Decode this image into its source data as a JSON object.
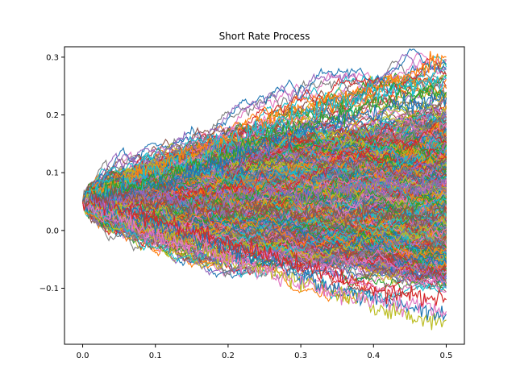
{
  "chart_data": {
    "type": "line",
    "title": "Short Rate Process",
    "xlabel": "",
    "ylabel": "",
    "xlim": [
      -0.025,
      0.525
    ],
    "ylim": [
      -0.197,
      0.318
    ],
    "x_ticks": [
      0.0,
      0.1,
      0.2,
      0.3,
      0.4,
      0.5
    ],
    "x_tick_labels": [
      "0.0",
      "0.1",
      "0.2",
      "0.3",
      "0.4",
      "0.5"
    ],
    "y_ticks": [
      -0.1,
      0.0,
      0.1,
      0.2,
      0.3
    ],
    "y_tick_labels": [
      "−0.1",
      "0.0",
      "0.1",
      "0.2",
      "0.3"
    ],
    "grid": false,
    "legend": "none",
    "x_start": 0.0,
    "x_end": 0.5,
    "initial_value": 0.05,
    "num_paths_shown": 1000,
    "palette": [
      "#1f77b4",
      "#ff7f0e",
      "#2ca02c",
      "#d62728",
      "#9467bd",
      "#8c564b",
      "#e377c2",
      "#7f7f7f",
      "#bcbd22",
      "#17becf"
    ],
    "series": [
      {
        "values": [
          0.05,
          0.08,
          0.11,
          0.14,
          0.16,
          0.19,
          0.21,
          0.23,
          0.25,
          0.27,
          0.3
        ],
        "color": "#ff7f0e"
      },
      {
        "values": [
          0.05,
          0.07,
          0.1,
          0.12,
          0.15,
          0.18,
          0.2,
          0.22,
          0.24,
          0.25,
          0.263
        ],
        "color": "#17becf"
      },
      {
        "values": [
          0.05,
          0.07,
          0.09,
          0.11,
          0.13,
          0.16,
          0.18,
          0.2,
          0.22,
          0.23,
          0.24
        ],
        "color": "#2ca02c"
      },
      {
        "values": [
          0.05,
          0.06,
          0.08,
          0.1,
          0.12,
          0.15,
          0.17,
          0.19,
          0.2,
          0.22,
          0.23
        ],
        "color": "#1f77b4"
      },
      {
        "values": [
          0.05,
          0.03,
          0.0,
          -0.02,
          -0.05,
          -0.07,
          -0.09,
          -0.11,
          -0.13,
          -0.15,
          -0.155
        ],
        "color": "#bcbd22"
      },
      {
        "values": [
          0.05,
          0.03,
          0.01,
          -0.01,
          -0.03,
          -0.05,
          -0.08,
          -0.1,
          -0.12,
          -0.13,
          -0.145
        ],
        "color": "#1f77b4"
      },
      {
        "values": [
          0.05,
          0.02,
          -0.01,
          -0.03,
          -0.05,
          -0.07,
          -0.09,
          -0.11,
          -0.12,
          -0.13,
          -0.14
        ],
        "color": "#e377c2"
      },
      {
        "values": [
          0.05,
          0.04,
          0.02,
          0.0,
          -0.02,
          -0.04,
          -0.06,
          -0.08,
          -0.1,
          -0.11,
          -0.12
        ],
        "color": "#d62728"
      },
      {
        "values": [
          0.05,
          0.05,
          0.06,
          0.05,
          0.06,
          0.07,
          0.06,
          0.07,
          0.08,
          0.07,
          0.08
        ],
        "color": "#9467bd"
      },
      {
        "values": [
          0.05,
          0.06,
          0.05,
          0.04,
          0.03,
          0.04,
          0.03,
          0.02,
          0.03,
          0.02,
          0.03
        ],
        "color": "#8c564b"
      }
    ]
  }
}
